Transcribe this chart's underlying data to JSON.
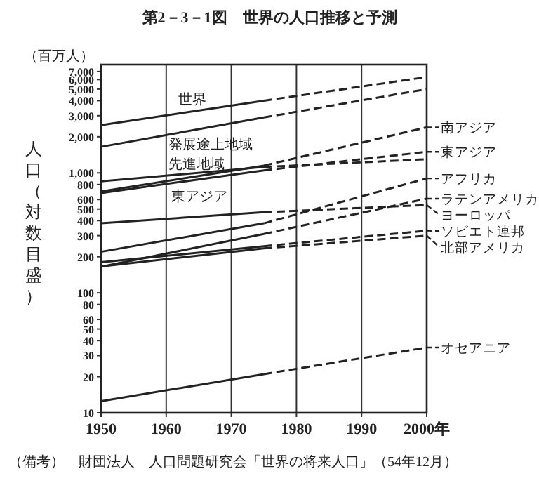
{
  "chart_data": {
    "type": "line",
    "title": "第2－3－1図　世界の人口推移と予測",
    "ylabel": "人口（対数目盛）",
    "log": true,
    "grid": "x",
    "xlim": [
      1950,
      2000
    ],
    "xticks": [
      1950,
      1960,
      1970,
      1980,
      1990,
      {
        "value": 2000,
        "label": "2000年"
      }
    ],
    "ylim": [
      10,
      8000
    ],
    "yticks": [
      10,
      20,
      30,
      40,
      50,
      60,
      80,
      100,
      200,
      300,
      400,
      500,
      600,
      800,
      {
        "value": 1000,
        "label": "1,000"
      },
      {
        "value": 2000,
        "label": "2,000"
      },
      {
        "value": 3000,
        "label": "3,000"
      },
      {
        "value": 4000,
        "label": "4,000"
      },
      {
        "value": 5000,
        "label": "5,000"
      },
      {
        "value": 6000,
        "label": "6,000"
      },
      {
        "value": 7000,
        "label": "7,000"
      }
    ],
    "annotations": [
      "（百万人）",
      "（備考）　財団法人　人口問題研究会「世界の将来人口」（54年12月）",
      "世界",
      "発展途上地域",
      "先進地域",
      "東アジア"
    ],
    "legend": "right",
    "series": [
      {
        "color": "#222222",
        "x": [
          1950,
          1975
        ],
        "values": [
          2500,
          4000
        ]
      },
      {
        "color": "#222222",
        "x": [
          1975,
          2000
        ],
        "values": [
          4000,
          6300
        ],
        "line_style": "dashed"
      },
      {
        "color": "#222222",
        "x": [
          1950,
          1975
        ],
        "values": [
          1650,
          2900
        ]
      },
      {
        "color": "#222222",
        "x": [
          1975,
          2000
        ],
        "values": [
          2900,
          5000
        ],
        "line_style": "dashed"
      },
      {
        "color": "#222222",
        "x": [
          1950,
          1975
        ],
        "values": [
          850,
          1120
        ]
      },
      {
        "color": "#222222",
        "x": [
          1975,
          2000
        ],
        "values": [
          1120,
          1300
        ],
        "line_style": "dashed"
      },
      {
        "color": "#222222",
        "x": [
          1950,
          1975
        ],
        "values": [
          700,
          1150
        ]
      },
      {
        "color": "#222222",
        "x": [
          1975,
          2000
        ],
        "values": [
          1150,
          2400
        ],
        "line_style": "dashed",
        "name": "南アジア"
      },
      {
        "color": "#222222",
        "x": [
          1950,
          1975
        ],
        "values": [
          680,
          1050
        ]
      },
      {
        "color": "#222222",
        "x": [
          1975,
          2000
        ],
        "values": [
          1050,
          1500
        ],
        "line_style": "dashed",
        "name": "東アジア"
      },
      {
        "color": "#222222",
        "x": [
          1950,
          1975
        ],
        "values": [
          220,
          380
        ]
      },
      {
        "color": "#222222",
        "x": [
          1975,
          2000
        ],
        "values": [
          380,
          900
        ],
        "line_style": "dashed",
        "name": "アフリカ"
      },
      {
        "color": "#222222",
        "x": [
          1950,
          1975
        ],
        "values": [
          165,
          310
        ]
      },
      {
        "color": "#222222",
        "x": [
          1975,
          2000
        ],
        "values": [
          310,
          610
        ],
        "line_style": "dashed",
        "name": "ラテンアメリカ"
      },
      {
        "color": "#222222",
        "x": [
          1950,
          1975
        ],
        "values": [
          380,
          470
        ]
      },
      {
        "color": "#222222",
        "x": [
          1975,
          2000
        ],
        "values": [
          470,
          540
        ],
        "line_style": "dashed",
        "name": "ヨーロッパ"
      },
      {
        "color": "#222222",
        "x": [
          1950,
          1975
        ],
        "values": [
          180,
          245
        ]
      },
      {
        "color": "#222222",
        "x": [
          1975,
          2000
        ],
        "values": [
          245,
          330
        ],
        "line_style": "dashed",
        "name": "ソビエト連邦"
      },
      {
        "color": "#222222",
        "x": [
          1950,
          1975
        ],
        "values": [
          166,
          235
        ]
      },
      {
        "color": "#222222",
        "x": [
          1975,
          2000
        ],
        "values": [
          235,
          300
        ],
        "line_style": "dashed",
        "name": "北部アメリカ"
      },
      {
        "color": "#222222",
        "x": [
          1950,
          1975
        ],
        "values": [
          12.5,
          21
        ]
      },
      {
        "color": "#222222",
        "x": [
          1975,
          2000
        ],
        "values": [
          21,
          35
        ],
        "line_style": "dashed",
        "name": "オセアニア"
      }
    ]
  }
}
